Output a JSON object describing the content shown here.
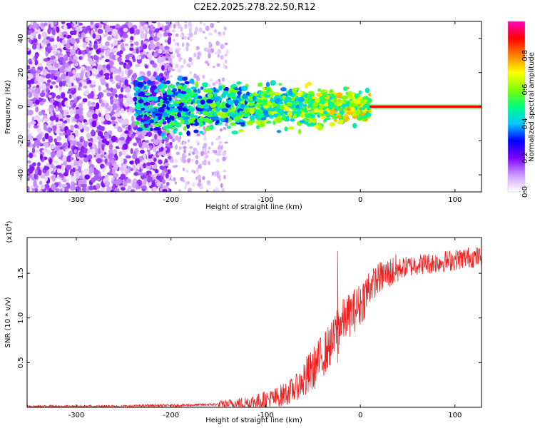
{
  "page_title": "C2E2.2025.278.22.50.R12",
  "chart_data": [
    {
      "type": "heatmap",
      "title": "C2E2.2025.278.22.50.R12",
      "xlabel": "Height of straight line (km)",
      "ylabel": "Frequency (Hz)",
      "xlim": [
        -352,
        128
      ],
      "ylim": [
        -50,
        50
      ],
      "xticks": [
        -300,
        -200,
        -100,
        0,
        100
      ],
      "yticks": [
        -40,
        -20,
        0,
        20,
        40
      ],
      "xtick_labels": [
        "-300",
        "-200",
        "-100",
        "0",
        "100"
      ],
      "ytick_labels": [
        "-40",
        "-20",
        "0",
        "20",
        "40"
      ],
      "colorbar": {
        "label": "Normalized spectral amplitude",
        "range": [
          0,
          1
        ],
        "ticks": [
          0.0,
          0.2,
          0.4,
          0.6,
          0.8
        ],
        "tick_labels": [
          "0.0",
          "0.2",
          "0.4",
          "0.6",
          "0.8"
        ],
        "colors": [
          "#ffffff",
          "#cc99ff",
          "#7a00ff",
          "#0000ff",
          "#00c8ff",
          "#00ff80",
          "#80ff00",
          "#ffff00",
          "#ff8000",
          "#ff0000",
          "#ff00c0"
        ]
      },
      "features": {
        "noise_region_x": [
          -352,
          -200
        ],
        "faint_region_x": [
          -200,
          -140
        ],
        "signal_band_start_x": -238,
        "signal_band_center_hz": 0,
        "signal_band_halfwidth_hz": 8,
        "clean_line_start_x": 10
      }
    },
    {
      "type": "line",
      "xlabel": "Height of straight line (km)",
      "ylabel": "SNR (10 * v/v)",
      "y_multiplier_label": "(x10",
      "y_multiplier_exp": "4",
      "xlim": [
        -352,
        128
      ],
      "ylim": [
        0,
        1.9
      ],
      "xticks": [
        -300,
        -200,
        -100,
        0,
        100
      ],
      "yticks": [
        0.5,
        1.0,
        1.5
      ],
      "xtick_labels": [
        "-300",
        "-200",
        "-100",
        "0",
        "100"
      ],
      "ytick_labels": [
        "0.5",
        "1.0",
        "1.5"
      ],
      "series": [
        {
          "name": "SNR",
          "color": "#ee2222",
          "x": [
            -352,
            -300,
            -250,
            -220,
            -200,
            -160,
            -130,
            -110,
            -90,
            -70,
            -55,
            -45,
            -35,
            -28,
            -25,
            -20,
            -10,
            0,
            10,
            20,
            30,
            40,
            60,
            80,
            100,
            115,
            128
          ],
          "y": [
            0.01,
            0.01,
            0.01,
            0.02,
            0.02,
            0.03,
            0.04,
            0.06,
            0.1,
            0.2,
            0.35,
            0.5,
            0.65,
            0.75,
            0.9,
            0.95,
            1.05,
            1.15,
            1.35,
            1.45,
            1.5,
            1.55,
            1.6,
            1.62,
            1.65,
            1.68,
            1.68
          ]
        }
      ],
      "annotations": [
        {
          "label": "spike",
          "x": -24,
          "y": 1.75
        }
      ]
    }
  ]
}
